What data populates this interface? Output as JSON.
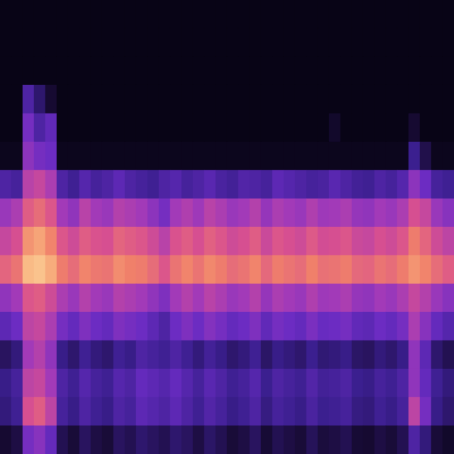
{
  "chart_data": {
    "type": "heatmap",
    "tick_labels": false,
    "zlim": [
      0,
      100
    ],
    "cells": [
      [
        2,
        2,
        2,
        2,
        2,
        2,
        2,
        2,
        2,
        2,
        2,
        2,
        2,
        2,
        2,
        2,
        2,
        2,
        2,
        2,
        2,
        2,
        2,
        2,
        2,
        2,
        2,
        2,
        2,
        2,
        2,
        2,
        2,
        2,
        2,
        2,
        2,
        2,
        2,
        2
      ],
      [
        2,
        2,
        2,
        2,
        2,
        2,
        2,
        2,
        2,
        2,
        2,
        2,
        2,
        2,
        2,
        2,
        2,
        2,
        2,
        2,
        2,
        2,
        2,
        2,
        2,
        2,
        2,
        2,
        2,
        2,
        2,
        2,
        2,
        2,
        2,
        2,
        2,
        2,
        2,
        2
      ],
      [
        2,
        2,
        2,
        2,
        2,
        2,
        2,
        2,
        2,
        2,
        2,
        2,
        2,
        2,
        2,
        2,
        2,
        2,
        2,
        2,
        2,
        2,
        2,
        2,
        2,
        2,
        2,
        2,
        2,
        2,
        2,
        2,
        2,
        2,
        2,
        2,
        2,
        2,
        2,
        2
      ],
      [
        2,
        2,
        30,
        20,
        10,
        2,
        2,
        2,
        2,
        2,
        2,
        2,
        2,
        2,
        2,
        2,
        2,
        2,
        2,
        2,
        2,
        2,
        2,
        2,
        2,
        2,
        2,
        2,
        2,
        2,
        2,
        2,
        2,
        2,
        2,
        2,
        2,
        2,
        2,
        2
      ],
      [
        2,
        2,
        40,
        30,
        35,
        2,
        2,
        2,
        2,
        2,
        2,
        2,
        2,
        2,
        2,
        2,
        2,
        2,
        2,
        2,
        2,
        2,
        2,
        2,
        2,
        2,
        2,
        2,
        2,
        8,
        2,
        2,
        2,
        2,
        2,
        2,
        10,
        2,
        2,
        2
      ],
      [
        4,
        4,
        45,
        40,
        38,
        4,
        4,
        4,
        4,
        4,
        4,
        4,
        4,
        4,
        4,
        4,
        4,
        4,
        4,
        4,
        4,
        4,
        4,
        4,
        4,
        4,
        4,
        4,
        4,
        4,
        4,
        4,
        4,
        4,
        4,
        4,
        25,
        15,
        4,
        4
      ],
      [
        30,
        28,
        55,
        58,
        52,
        30,
        26,
        32,
        28,
        30,
        34,
        30,
        28,
        26,
        30,
        32,
        28,
        30,
        33,
        29,
        27,
        31,
        30,
        28,
        34,
        32,
        30,
        28,
        29,
        33,
        30,
        27,
        26,
        30,
        28,
        32,
        45,
        38,
        28,
        26
      ],
      [
        48,
        52,
        66,
        70,
        64,
        50,
        46,
        55,
        50,
        48,
        54,
        52,
        50,
        45,
        40,
        50,
        53,
        49,
        55,
        52,
        48,
        50,
        54,
        47,
        52,
        50,
        48,
        53,
        49,
        50,
        52,
        47,
        46,
        50,
        48,
        52,
        62,
        58,
        48,
        44
      ],
      [
        58,
        62,
        80,
        84,
        76,
        64,
        60,
        66,
        63,
        62,
        68,
        66,
        64,
        60,
        55,
        63,
        66,
        62,
        67,
        64,
        60,
        62,
        66,
        59,
        64,
        62,
        60,
        65,
        61,
        62,
        64,
        59,
        58,
        62,
        60,
        64,
        74,
        68,
        60,
        56
      ],
      [
        68,
        72,
        90,
        92,
        86,
        74,
        70,
        76,
        73,
        72,
        78,
        75,
        74,
        70,
        64,
        72,
        76,
        72,
        77,
        74,
        70,
        72,
        76,
        69,
        74,
        72,
        70,
        75,
        71,
        72,
        74,
        69,
        68,
        72,
        70,
        74,
        80,
        76,
        70,
        66
      ],
      [
        46,
        50,
        64,
        66,
        60,
        52,
        48,
        54,
        50,
        48,
        54,
        52,
        50,
        46,
        42,
        50,
        54,
        50,
        55,
        52,
        48,
        50,
        54,
        47,
        52,
        50,
        48,
        53,
        49,
        50,
        52,
        47,
        46,
        50,
        48,
        52,
        58,
        54,
        48,
        44
      ],
      [
        34,
        38,
        56,
        58,
        52,
        40,
        36,
        42,
        38,
        36,
        42,
        40,
        38,
        34,
        30,
        38,
        42,
        38,
        43,
        40,
        36,
        38,
        42,
        35,
        40,
        38,
        36,
        41,
        37,
        38,
        40,
        35,
        34,
        38,
        36,
        40,
        52,
        44,
        36,
        32
      ],
      [
        18,
        22,
        50,
        54,
        46,
        24,
        20,
        26,
        22,
        20,
        26,
        24,
        30,
        28,
        26,
        30,
        26,
        22,
        27,
        24,
        20,
        22,
        26,
        19,
        24,
        22,
        20,
        25,
        21,
        22,
        24,
        19,
        18,
        22,
        20,
        24,
        46,
        34,
        20,
        16
      ],
      [
        24,
        28,
        56,
        58,
        50,
        30,
        26,
        32,
        28,
        26,
        32,
        30,
        36,
        34,
        32,
        36,
        32,
        28,
        33,
        30,
        26,
        28,
        32,
        25,
        30,
        28,
        26,
        31,
        27,
        28,
        30,
        25,
        24,
        28,
        26,
        30,
        46,
        36,
        26,
        22
      ],
      [
        22,
        26,
        62,
        66,
        56,
        28,
        24,
        30,
        26,
        24,
        30,
        28,
        34,
        32,
        30,
        34,
        30,
        26,
        31,
        28,
        24,
        26,
        30,
        23,
        28,
        26,
        24,
        29,
        25,
        26,
        28,
        23,
        22,
        26,
        24,
        28,
        56,
        40,
        24,
        20
      ],
      [
        10,
        14,
        40,
        44,
        36,
        16,
        12,
        18,
        14,
        12,
        18,
        16,
        20,
        18,
        16,
        20,
        18,
        14,
        19,
        16,
        12,
        14,
        18,
        11,
        16,
        14,
        12,
        17,
        13,
        14,
        16,
        11,
        10,
        14,
        12,
        16,
        30,
        22,
        12,
        8
      ]
    ]
  }
}
